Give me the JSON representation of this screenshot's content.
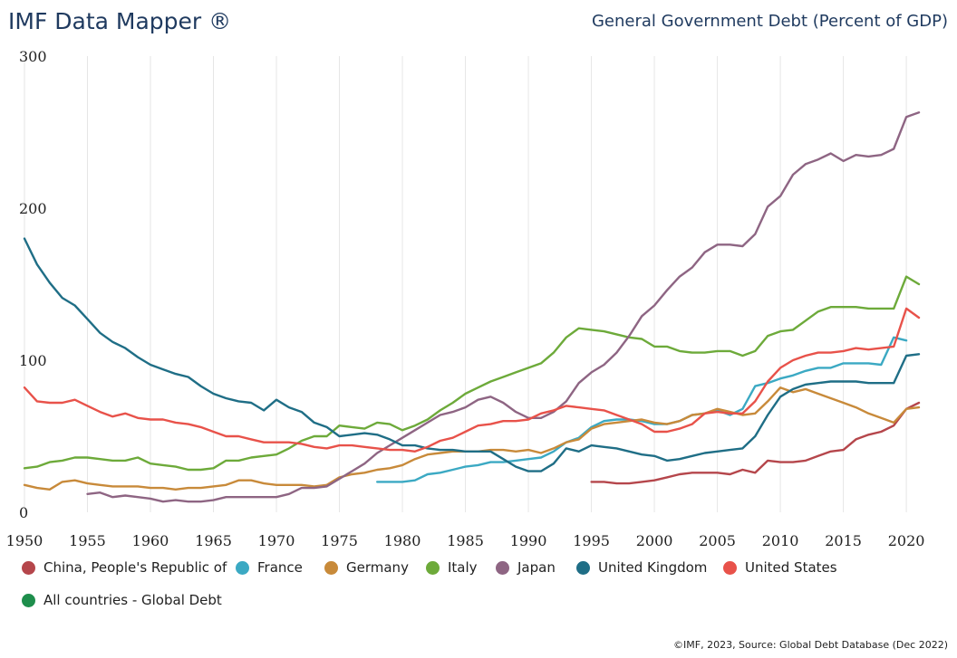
{
  "header": {
    "brand": "IMF Data Mapper ®",
    "title": "General Government Debt (Percent of GDP)"
  },
  "footer": {
    "source": "©IMF, 2023, Source: Global Debt Database (Dec 2022)"
  },
  "chart_data": {
    "type": "line",
    "title": "General Government Debt (Percent of GDP)",
    "xlabel": "",
    "ylabel": "",
    "xlim": [
      1950,
      2021
    ],
    "ylim": [
      0,
      300
    ],
    "yticks": [
      0,
      100,
      200,
      300
    ],
    "xticks": [
      1950,
      1955,
      1960,
      1965,
      1970,
      1975,
      1980,
      1985,
      1990,
      1995,
      2000,
      2005,
      2010,
      2015,
      2020
    ],
    "grid": "vertical",
    "legend_position": "bottom",
    "series": [
      {
        "name": "China, People's Republic of",
        "color": "#b5464b",
        "start": 1995,
        "values": [
          20,
          20,
          19,
          19,
          20,
          21,
          23,
          25,
          26,
          26,
          26,
          25,
          28,
          26,
          34,
          33,
          33,
          34,
          37,
          40,
          41,
          48,
          51,
          53,
          57,
          68,
          72
        ]
      },
      {
        "name": "France",
        "color": "#3ba9c3",
        "start": 1978,
        "values": [
          20,
          20,
          20,
          21,
          25,
          26,
          28,
          30,
          31,
          33,
          33,
          34,
          35,
          36,
          40,
          46,
          49,
          56,
          60,
          61,
          61,
          60,
          58,
          58,
          60,
          64,
          65,
          67,
          64,
          68,
          83,
          85,
          88,
          90,
          93,
          95,
          95,
          98,
          98,
          98,
          97,
          115,
          113
        ]
      },
      {
        "name": "Germany",
        "color": "#c88a3a",
        "start": 1950,
        "values": [
          18,
          16,
          15,
          20,
          21,
          19,
          18,
          17,
          17,
          17,
          16,
          16,
          15,
          16,
          16,
          17,
          18,
          21,
          21,
          19,
          18,
          18,
          18,
          17,
          18,
          23,
          25,
          26,
          28,
          29,
          31,
          35,
          38,
          39,
          40,
          40,
          40,
          41,
          41,
          40,
          41,
          39,
          42,
          46,
          48,
          55,
          58,
          59,
          60,
          61,
          59,
          58,
          60,
          64,
          65,
          68,
          66,
          64,
          65,
          73,
          82,
          79,
          81,
          78,
          75,
          72,
          69,
          65,
          62,
          59,
          68,
          69
        ]
      },
      {
        "name": "Italy",
        "color": "#6daa3a",
        "start": 1950,
        "values": [
          29,
          30,
          33,
          34,
          36,
          36,
          35,
          34,
          34,
          36,
          32,
          31,
          30,
          28,
          28,
          29,
          34,
          34,
          36,
          37,
          38,
          42,
          47,
          50,
          50,
          57,
          56,
          55,
          59,
          58,
          54,
          57,
          61,
          67,
          72,
          78,
          82,
          86,
          89,
          92,
          95,
          98,
          105,
          115,
          121,
          120,
          119,
          117,
          115,
          114,
          109,
          109,
          106,
          105,
          105,
          106,
          106,
          103,
          106,
          116,
          119,
          120,
          126,
          132,
          135,
          135,
          135,
          134,
          134,
          134,
          155,
          150
        ]
      },
      {
        "name": "Japan",
        "color": "#8e6583",
        "start": 1955,
        "values": [
          12,
          13,
          10,
          11,
          10,
          9,
          7,
          8,
          7,
          7,
          8,
          10,
          10,
          10,
          10,
          10,
          12,
          16,
          16,
          17,
          22,
          27,
          32,
          39,
          44,
          49,
          54,
          59,
          64,
          66,
          69,
          74,
          76,
          72,
          66,
          62,
          62,
          66,
          73,
          85,
          92,
          97,
          105,
          116,
          129,
          136,
          146,
          155,
          161,
          171,
          176,
          176,
          175,
          183,
          201,
          208,
          222,
          229,
          232,
          236,
          231,
          235,
          234,
          235,
          239,
          260,
          263
        ]
      },
      {
        "name": "United Kingdom",
        "color": "#1f6e86",
        "start": 1950,
        "values": [
          180,
          163,
          151,
          141,
          136,
          127,
          118,
          112,
          108,
          102,
          97,
          94,
          91,
          89,
          83,
          78,
          75,
          73,
          72,
          67,
          74,
          69,
          66,
          59,
          56,
          50,
          51,
          52,
          51,
          48,
          44,
          44,
          42,
          41,
          41,
          40,
          40,
          40,
          35,
          30,
          27,
          27,
          32,
          42,
          40,
          44,
          43,
          42,
          40,
          38,
          37,
          34,
          35,
          37,
          39,
          40,
          41,
          42,
          50,
          64,
          76,
          81,
          84,
          85,
          86,
          86,
          86,
          85,
          85,
          85,
          103,
          104
        ]
      },
      {
        "name": "United States",
        "color": "#e8524a",
        "start": 1950,
        "values": [
          82,
          73,
          72,
          72,
          74,
          70,
          66,
          63,
          65,
          62,
          61,
          61,
          59,
          58,
          56,
          53,
          50,
          50,
          48,
          46,
          46,
          46,
          45,
          43,
          42,
          44,
          44,
          43,
          42,
          41,
          41,
          40,
          43,
          47,
          49,
          53,
          57,
          58,
          60,
          60,
          61,
          65,
          67,
          70,
          69,
          68,
          67,
          64,
          61,
          58,
          53,
          53,
          55,
          58,
          65,
          66,
          65,
          65,
          73,
          86,
          95,
          100,
          103,
          105,
          105,
          106,
          108,
          107,
          108,
          109,
          134,
          128
        ]
      },
      {
        "name": "All countries - Global Debt",
        "color": "#1e8e4c",
        "start": 1950,
        "values": []
      }
    ]
  }
}
